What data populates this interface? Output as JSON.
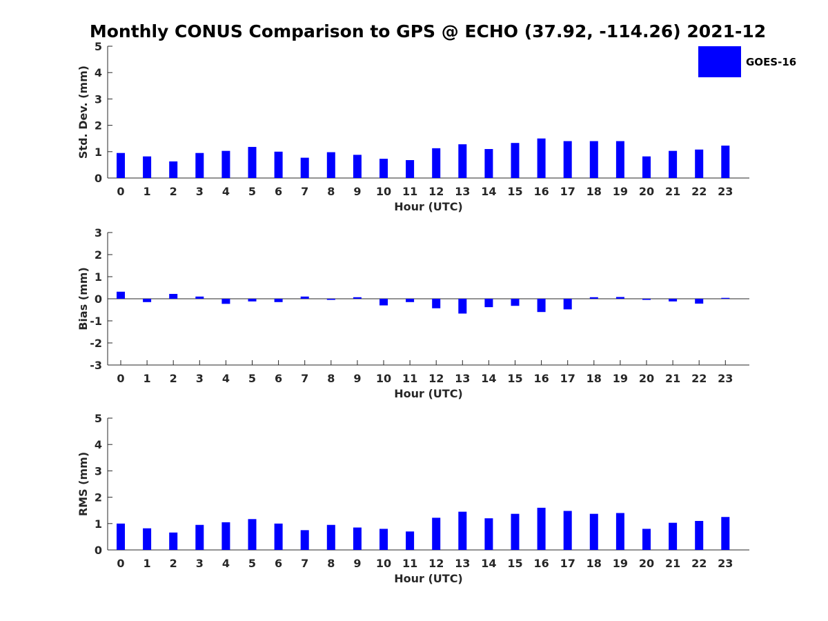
{
  "title": "Monthly CONUS Comparison to GPS @ ECHO (37.92, -114.26) 2021-12",
  "legend": {
    "label": "GOES-16",
    "color": "#0000ff",
    "placement": "top-right"
  },
  "chart_data": [
    {
      "type": "bar",
      "ylabel": "Std. Dev. (mm)",
      "xlabel": "Hour (UTC)",
      "ylim": [
        0,
        5
      ],
      "yticks": [
        0,
        1,
        2,
        3,
        4,
        5
      ],
      "categories": [
        "0",
        "1",
        "2",
        "3",
        "4",
        "5",
        "6",
        "7",
        "8",
        "9",
        "10",
        "11",
        "12",
        "13",
        "14",
        "15",
        "16",
        "17",
        "18",
        "19",
        "20",
        "21",
        "22",
        "23"
      ],
      "series": [
        {
          "name": "GOES-16",
          "color": "#0000ff",
          "values": [
            0.95,
            0.82,
            0.63,
            0.95,
            1.03,
            1.18,
            1.0,
            0.77,
            0.98,
            0.88,
            0.73,
            0.68,
            1.13,
            1.28,
            1.1,
            1.33,
            1.5,
            1.4,
            1.4,
            1.4,
            0.82,
            1.03,
            1.08,
            1.23
          ]
        }
      ],
      "grid": false
    },
    {
      "type": "bar",
      "ylabel": "Bias (mm)",
      "xlabel": "Hour (UTC)",
      "ylim": [
        -3,
        3
      ],
      "yticks": [
        -3,
        -2,
        -1,
        0,
        1,
        2,
        3
      ],
      "categories": [
        "0",
        "1",
        "2",
        "3",
        "4",
        "5",
        "6",
        "7",
        "8",
        "9",
        "10",
        "11",
        "12",
        "13",
        "14",
        "15",
        "16",
        "17",
        "18",
        "19",
        "20",
        "21",
        "22",
        "23"
      ],
      "series": [
        {
          "name": "GOES-16",
          "color": "#0000ff",
          "values": [
            0.32,
            -0.15,
            0.22,
            0.1,
            -0.23,
            -0.12,
            -0.15,
            0.1,
            -0.05,
            0.07,
            -0.3,
            -0.15,
            -0.43,
            -0.67,
            -0.38,
            -0.32,
            -0.6,
            -0.48,
            0.07,
            0.08,
            -0.05,
            -0.12,
            -0.22,
            0.04
          ]
        }
      ],
      "grid": false
    },
    {
      "type": "bar",
      "ylabel": "RMS (mm)",
      "xlabel": "Hour (UTC)",
      "ylim": [
        0,
        5
      ],
      "yticks": [
        0,
        1,
        2,
        3,
        4,
        5
      ],
      "categories": [
        "0",
        "1",
        "2",
        "3",
        "4",
        "5",
        "6",
        "7",
        "8",
        "9",
        "10",
        "11",
        "12",
        "13",
        "14",
        "15",
        "16",
        "17",
        "18",
        "19",
        "20",
        "21",
        "22",
        "23"
      ],
      "series": [
        {
          "name": "GOES-16",
          "color": "#0000ff",
          "values": [
            1.0,
            0.82,
            0.66,
            0.95,
            1.05,
            1.17,
            1.0,
            0.75,
            0.95,
            0.85,
            0.8,
            0.7,
            1.22,
            1.45,
            1.2,
            1.37,
            1.6,
            1.48,
            1.37,
            1.4,
            0.8,
            1.03,
            1.1,
            1.25
          ]
        }
      ],
      "grid": false
    }
  ]
}
